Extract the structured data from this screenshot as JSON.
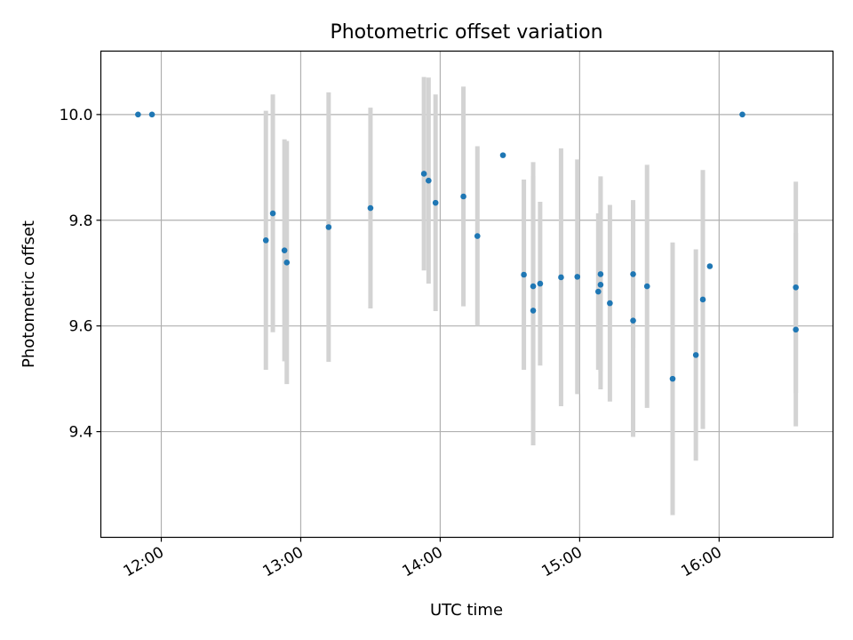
{
  "chart_data": {
    "type": "scatter",
    "title": "Photometric offset variation",
    "xlabel": "UTC time",
    "ylabel": "Photometric offset",
    "x_axis_type": "time",
    "xlim": [
      "11:34",
      "16:49"
    ],
    "ylim": [
      9.2,
      10.12
    ],
    "x_ticks": [
      "12:00",
      "13:00",
      "14:00",
      "15:00",
      "16:00"
    ],
    "y_ticks": [
      9.4,
      9.6,
      9.8,
      10.0
    ],
    "grid": true,
    "colors": {
      "point": "#1f77b4",
      "errorbar": "#d3d3d3",
      "grid": "#b0b0b0"
    },
    "points": [
      {
        "x": "11:50",
        "y": 10.0
      },
      {
        "x": "11:56",
        "y": 10.0
      },
      {
        "x": "12:45",
        "y": 9.762,
        "yerr": 0.245
      },
      {
        "x": "12:48",
        "y": 9.813,
        "yerr": 0.225
      },
      {
        "x": "12:53",
        "y": 9.743,
        "yerr": 0.21
      },
      {
        "x": "12:54",
        "y": 9.72,
        "yerr": 0.23
      },
      {
        "x": "13:12",
        "y": 9.787,
        "yerr": 0.255
      },
      {
        "x": "13:30",
        "y": 9.823,
        "yerr": 0.19
      },
      {
        "x": "13:53",
        "y": 9.888,
        "yerr": 0.183
      },
      {
        "x": "13:55",
        "y": 9.875,
        "yerr": 0.195
      },
      {
        "x": "13:58",
        "y": 9.833,
        "yerr": 0.205
      },
      {
        "x": "14:10",
        "y": 9.845,
        "yerr": 0.208
      },
      {
        "x": "14:16",
        "y": 9.77,
        "yerr": 0.17
      },
      {
        "x": "14:27",
        "y": 9.923
      },
      {
        "x": "14:36",
        "y": 9.697,
        "yerr": 0.18
      },
      {
        "x": "14:40",
        "y": 9.675,
        "yerr": 0.235
      },
      {
        "x": "14:40",
        "y": 9.629,
        "yerr": 0.255
      },
      {
        "x": "14:43",
        "y": 9.68,
        "yerr": 0.155
      },
      {
        "x": "14:52",
        "y": 9.692,
        "yerr": 0.244
      },
      {
        "x": "14:59",
        "y": 9.693,
        "yerr": 0.222
      },
      {
        "x": "15:08",
        "y": 9.665,
        "yerr": 0.148
      },
      {
        "x": "15:09",
        "y": 9.678,
        "yerr": 0.198
      },
      {
        "x": "15:09",
        "y": 9.698,
        "yerr": 0.185
      },
      {
        "x": "15:13",
        "y": 9.643,
        "yerr": 0.186
      },
      {
        "x": "15:23",
        "y": 9.698,
        "yerr": 0.14
      },
      {
        "x": "15:23",
        "y": 9.61,
        "yerr": 0.22
      },
      {
        "x": "15:29",
        "y": 9.675,
        "yerr": 0.23
      },
      {
        "x": "15:40",
        "y": 9.5,
        "yerr": 0.258
      },
      {
        "x": "15:50",
        "y": 9.545,
        "yerr": 0.2
      },
      {
        "x": "15:53",
        "y": 9.65,
        "yerr": 0.245
      },
      {
        "x": "15:56",
        "y": 9.713
      },
      {
        "x": "16:10",
        "y": 10.0
      },
      {
        "x": "16:33",
        "y": 9.673,
        "yerr": 0.2
      },
      {
        "x": "16:33",
        "y": 9.593,
        "yerr": 0.183
      }
    ]
  }
}
